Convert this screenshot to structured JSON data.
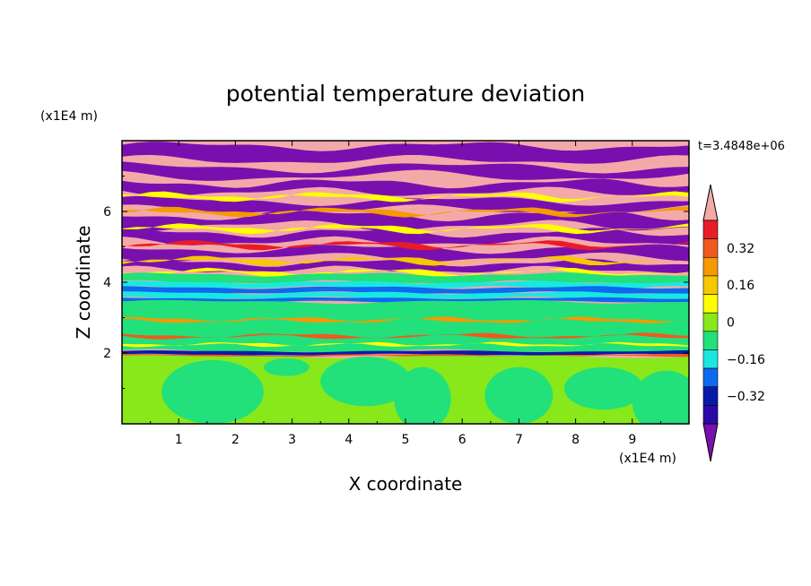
{
  "chart_data": {
    "type": "heatmap",
    "title": "potential temperature deviation",
    "xlabel": "X coordinate",
    "ylabel": "Z coordinate",
    "x_unit": "(x1E4 m)",
    "y_unit": "(x1E4 m)",
    "time_label": "t=3.4848e+06",
    "xlim": [
      0,
      10
    ],
    "ylim": [
      0,
      8
    ],
    "x_ticks": [
      "1",
      "2",
      "3",
      "4",
      "5",
      "6",
      "7",
      "8",
      "9"
    ],
    "y_ticks": [
      "2",
      "4",
      "6"
    ],
    "colorbar": {
      "labels": [
        "0.32",
        "0.16",
        "0",
        "-0.16",
        "-0.32"
      ],
      "levels": [
        {
          "value": 0.48,
          "color": "#f4a9a9"
        },
        {
          "value": 0.4,
          "color": "#e81c28"
        },
        {
          "value": 0.32,
          "color": "#f05a1e"
        },
        {
          "value": 0.24,
          "color": "#f59a00"
        },
        {
          "value": 0.16,
          "color": "#f7c800"
        },
        {
          "value": 0.08,
          "color": "#ffff00"
        },
        {
          "value": 0.0,
          "color": "#88e81a"
        },
        {
          "value": -0.08,
          "color": "#22e07a"
        },
        {
          "value": -0.16,
          "color": "#1ae8e0"
        },
        {
          "value": -0.24,
          "color": "#0d6aee"
        },
        {
          "value": -0.32,
          "color": "#0a1aa8"
        },
        {
          "value": -0.4,
          "color": "#2a0aa8"
        },
        {
          "value": -0.48,
          "color": "#7a0fb0"
        }
      ]
    },
    "layers": [
      {
        "zmin": 0.0,
        "zmax": 1.9,
        "value": 0.0,
        "pattern": "green with turquoise patches"
      },
      {
        "zmin": 1.9,
        "zmax": 2.05,
        "value": -0.3,
        "pattern": "thin dark blue/orange interface"
      },
      {
        "zmin": 2.05,
        "zmax": 3.5,
        "value": -0.08,
        "pattern": "turquoise with warm streaks"
      },
      {
        "zmin": 3.5,
        "zmax": 4.2,
        "value": -0.2,
        "pattern": "cyan and blue bands"
      },
      {
        "zmin": 4.2,
        "zmax": 8.0,
        "value": 0.5,
        "pattern": "alternating pink and purple bands"
      }
    ]
  }
}
